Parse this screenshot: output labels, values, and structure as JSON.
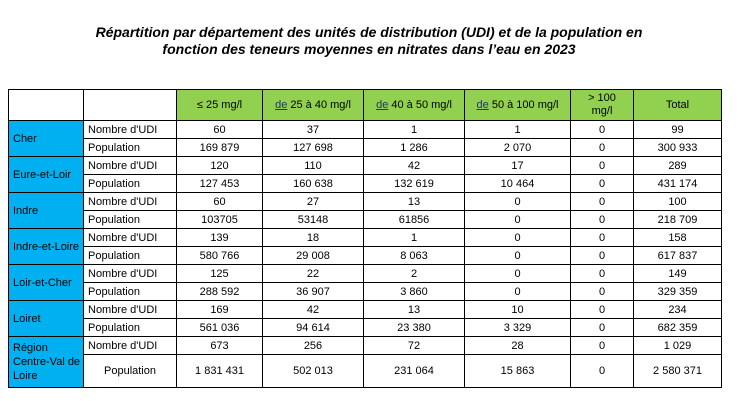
{
  "title": {
    "line1": "Répartition par département des unités de distribution (UDI) et de la population en",
    "line2": "fonction des teneurs moyennes en nitrates dans l’eau en 2023"
  },
  "table": {
    "headers": {
      "c1": "≤ 25 mg/l",
      "c2_prefix": "de",
      "c2_rest": " 25 à 40 mg/l",
      "c3_prefix": "de",
      "c3_rest": " 40 à 50 mg/l",
      "c4_prefix": "de",
      "c4_rest": " 50 à 100 mg/l",
      "c5": "> 100 mg/l",
      "c6": "Total"
    },
    "row_labels": {
      "udi": "Nombre d'UDI",
      "pop": "Population"
    },
    "departments": [
      {
        "name": "Cher",
        "udi": [
          "60",
          "37",
          "1",
          "1",
          "0",
          "99"
        ],
        "pop": [
          "169 879",
          "127 698",
          "1 286",
          "2 070",
          "0",
          "300 933"
        ]
      },
      {
        "name": "Eure-et-Loir",
        "udi": [
          "120",
          "110",
          "42",
          "17",
          "0",
          "289"
        ],
        "pop": [
          "127 453",
          "160 638",
          "132 619",
          "10 464",
          "0",
          "431 174"
        ]
      },
      {
        "name": "Indre",
        "udi": [
          "60",
          "27",
          "13",
          "0",
          "0",
          "100"
        ],
        "pop": [
          "103705",
          "53148",
          "61856",
          "0",
          "0",
          "218 709"
        ]
      },
      {
        "name": "Indre-et-Loire",
        "udi": [
          "139",
          "18",
          "1",
          "0",
          "0",
          "158"
        ],
        "pop": [
          "580 766",
          "29 008",
          "8 063",
          "0",
          "0",
          "617 837"
        ]
      },
      {
        "name": "Loir-et-Cher",
        "udi": [
          "125",
          "22",
          "2",
          "0",
          "0",
          "149"
        ],
        "pop": [
          "288 592",
          "36 907",
          "3 860",
          "0",
          "0",
          "329 359"
        ]
      },
      {
        "name": "Loiret",
        "udi": [
          "169",
          "42",
          "13",
          "10",
          "0",
          "234"
        ],
        "pop": [
          "561 036",
          "94 614",
          "23 380",
          "3 329",
          "0",
          "682 359"
        ]
      },
      {
        "name": "Région Centre-Val de Loire",
        "udi": [
          "673",
          "256",
          "72",
          "28",
          "0",
          "1 029"
        ],
        "pop": [
          "1 831 431",
          "502 013",
          "231 064",
          "15 863",
          "0",
          "2 580 371"
        ]
      }
    ]
  },
  "colors": {
    "header_fill": "#92d050",
    "department_fill": "#00b0f0"
  }
}
